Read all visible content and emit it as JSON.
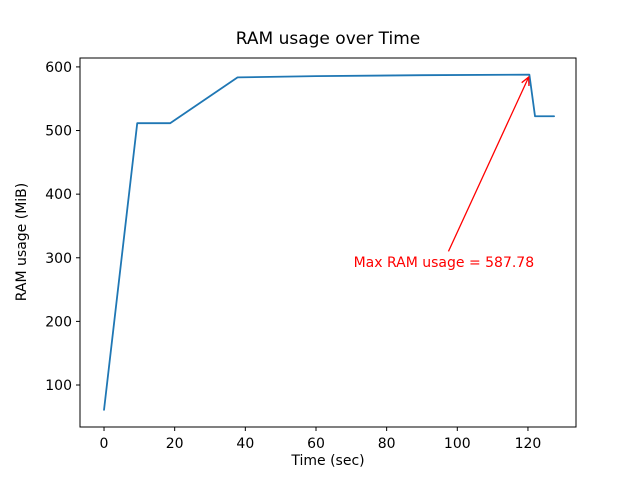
{
  "chart_data": {
    "type": "line",
    "title": "RAM usage over Time",
    "xlabel": "Time (sec)",
    "ylabel": "RAM usage (MiB)",
    "series": [
      {
        "name": "RAM usage",
        "color": "#1f77b4",
        "x": [
          0,
          9.4,
          18.7,
          37.8,
          60,
          90,
          120.4,
          122,
          127.4
        ],
        "y": [
          61,
          511.5,
          511.5,
          583.5,
          585.5,
          587,
          587.78,
          522.5,
          522.5
        ]
      }
    ],
    "max_value": 587.78,
    "xticks": [
      0,
      20,
      40,
      60,
      80,
      100,
      120
    ],
    "yticks": [
      100,
      200,
      300,
      400,
      500,
      600
    ],
    "xlim": [
      -6.8,
      133.6
    ],
    "ylim": [
      34,
      614
    ],
    "grid": false,
    "legend": "none",
    "annotation": {
      "text": "Max RAM usage = 587.78",
      "color": "#ff0000",
      "arrow_tip": {
        "x": 120.2,
        "y": 584
      },
      "arrow_tail": {
        "x": 97.5,
        "y": 310
      },
      "text_pos": {
        "x": 96.2,
        "y": 292
      }
    },
    "axis_color": "#000000",
    "background": "#ffffff"
  }
}
